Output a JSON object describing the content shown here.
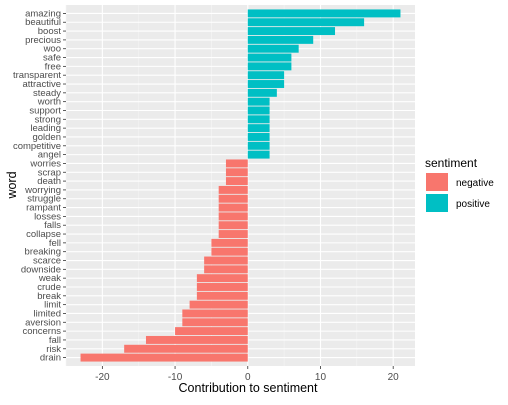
{
  "chart_data": {
    "type": "bar",
    "orientation": "horizontal",
    "title": "",
    "xlabel": "Contribution to sentiment",
    "ylabel": "word",
    "xlim": [
      -25,
      23
    ],
    "xticks": [
      -20,
      -10,
      0,
      10,
      20
    ],
    "grid": true,
    "legend": {
      "title": "sentiment",
      "placement": "right",
      "entries": [
        {
          "label": "negative",
          "color": "#F8766D"
        },
        {
          "label": "positive",
          "color": "#00BFC4"
        }
      ]
    },
    "colors": {
      "negative": "#F8766D",
      "positive": "#00BFC4",
      "panel": "#EBEBEB"
    },
    "categories": [
      "amazing",
      "beautiful",
      "boost",
      "precious",
      "woo",
      "safe",
      "free",
      "transparent",
      "attractive",
      "steady",
      "worth",
      "support",
      "strong",
      "leading",
      "golden",
      "competitive",
      "angel",
      "worries",
      "scrap",
      "death",
      "worrying",
      "struggle",
      "rampant",
      "losses",
      "falls",
      "collapse",
      "fell",
      "breaking",
      "scarce",
      "downside",
      "weak",
      "crude",
      "break",
      "limit",
      "limited",
      "aversion",
      "concerns",
      "fall",
      "risk",
      "drain"
    ],
    "values": [
      21,
      16,
      12,
      9,
      7,
      6,
      6,
      5,
      5,
      4,
      3,
      3,
      3,
      3,
      3,
      3,
      3,
      -3,
      -3,
      -3,
      -4,
      -4,
      -4,
      -4,
      -4,
      -4,
      -5,
      -5,
      -6,
      -6,
      -7,
      -7,
      -7,
      -8,
      -9,
      -9,
      -10,
      -14,
      -17,
      -23
    ],
    "sentiment": [
      "positive",
      "positive",
      "positive",
      "positive",
      "positive",
      "positive",
      "positive",
      "positive",
      "positive",
      "positive",
      "positive",
      "positive",
      "positive",
      "positive",
      "positive",
      "positive",
      "positive",
      "negative",
      "negative",
      "negative",
      "negative",
      "negative",
      "negative",
      "negative",
      "negative",
      "negative",
      "negative",
      "negative",
      "negative",
      "negative",
      "negative",
      "negative",
      "negative",
      "negative",
      "negative",
      "negative",
      "negative",
      "negative",
      "negative",
      "negative"
    ]
  }
}
